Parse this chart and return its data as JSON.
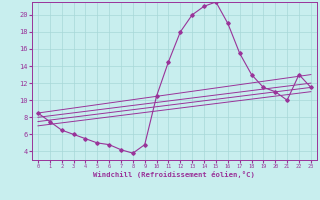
{
  "xlabel": "Windchill (Refroidissement éolien,°C)",
  "bg_color": "#c8eeee",
  "grid_color": "#a8d8d8",
  "line_color": "#993399",
  "xlim": [
    -0.5,
    23.5
  ],
  "ylim": [
    3.0,
    21.5
  ],
  "xticks": [
    0,
    1,
    2,
    3,
    4,
    5,
    6,
    7,
    8,
    9,
    10,
    11,
    12,
    13,
    14,
    15,
    16,
    17,
    18,
    19,
    20,
    21,
    22,
    23
  ],
  "yticks": [
    4,
    6,
    8,
    10,
    12,
    14,
    16,
    18,
    20
  ],
  "line1_x": [
    0,
    1,
    2,
    3,
    4,
    5,
    6,
    7,
    8,
    9,
    10,
    11,
    12,
    13,
    14,
    15,
    16,
    17,
    18,
    19,
    20,
    21,
    22,
    23
  ],
  "line1_y": [
    8.5,
    7.5,
    6.5,
    6.0,
    5.5,
    5.0,
    4.8,
    4.2,
    3.8,
    4.8,
    10.5,
    14.5,
    18.0,
    20.0,
    21.0,
    21.5,
    19.0,
    15.5,
    13.0,
    11.5,
    11.0,
    10.0,
    13.0,
    11.5
  ],
  "line2_x": [
    0,
    23
  ],
  "line2_y": [
    8.5,
    13.0
  ],
  "line3_x": [
    0,
    23
  ],
  "line3_y": [
    8.0,
    12.0
  ],
  "line4_x": [
    0,
    23
  ],
  "line4_y": [
    7.5,
    11.5
  ],
  "line5_x": [
    0,
    23
  ],
  "line5_y": [
    7.0,
    11.0
  ]
}
